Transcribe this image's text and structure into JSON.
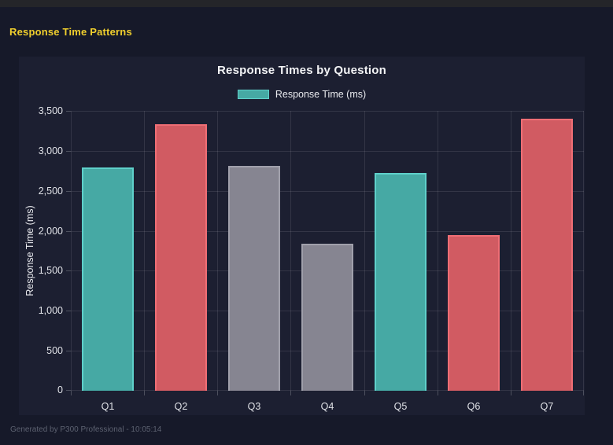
{
  "page": {
    "heading": "Response Time Patterns",
    "footer": "Generated by P300 Professional - 10:05:14"
  },
  "colors": {
    "page_bg": "#161929",
    "top_strip_bg": "#242529",
    "card_bg": "#1c1f31",
    "heading_yellow": "#f0cf2d",
    "title_text": "#f2f3f5",
    "tick_text": "#e0e2e7",
    "gridline": "rgba(255,255,255,0.10)",
    "footer_text": "#5c6170"
  },
  "chart_data": {
    "type": "bar",
    "title": "Response Times by Question",
    "legend": {
      "position": "top",
      "items": [
        {
          "label": "Response Time (ms)",
          "swatch_fill": "#46a9a4",
          "swatch_border": "#5fd0ca"
        }
      ]
    },
    "categories": [
      "Q1",
      "Q2",
      "Q3",
      "Q4",
      "Q5",
      "Q6",
      "Q7"
    ],
    "series": [
      {
        "name": "Response Time (ms)",
        "values": [
          2790,
          3330,
          2810,
          1840,
          2720,
          1950,
          3400
        ],
        "bar_fill_colors": [
          "#46a9a4",
          "#d15b62",
          "#868591",
          "#868591",
          "#46a9a4",
          "#d15b62",
          "#d15b62"
        ],
        "bar_border_colors": [
          "#5fd0ca",
          "#ef6e75",
          "#a0a0ab",
          "#a0a0ab",
          "#5fd0ca",
          "#ef6e75",
          "#ef6e75"
        ]
      }
    ],
    "xlabel": "",
    "ylabel": "Response Time (ms)",
    "ylim": [
      0,
      3500
    ],
    "ytick_step": 500,
    "grid": true
  }
}
